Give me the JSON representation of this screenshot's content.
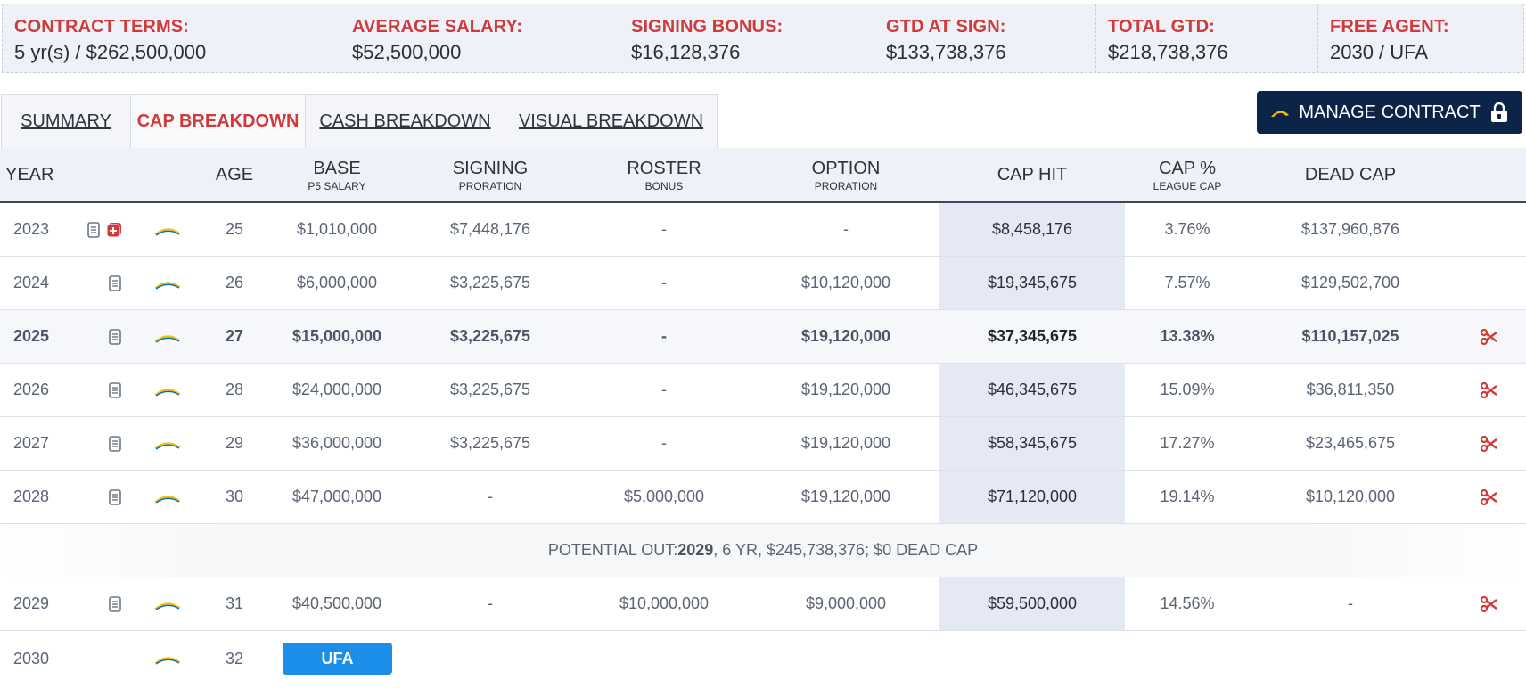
{
  "summary": [
    {
      "label": "CONTRACT TERMS:",
      "value": "5 yr(s) / $262,500,000"
    },
    {
      "label": "AVERAGE SALARY:",
      "value": "$52,500,000"
    },
    {
      "label": "SIGNING BONUS:",
      "value": "$16,128,376"
    },
    {
      "label": "GTD AT SIGN:",
      "value": "$133,738,376"
    },
    {
      "label": "TOTAL GTD:",
      "value": "$218,738,376"
    },
    {
      "label": "FREE AGENT:",
      "value": "2030 / UFA"
    }
  ],
  "tabs": [
    {
      "label": "SUMMARY",
      "active": false
    },
    {
      "label": "CAP BREAKDOWN",
      "active": true
    },
    {
      "label": "CASH BREAKDOWN",
      "active": false
    },
    {
      "label": "VISUAL BREAKDOWN",
      "active": false
    }
  ],
  "manage_button": {
    "label": "MANAGE CONTRACT"
  },
  "table": {
    "headers": {
      "year": "YEAR",
      "age": "AGE",
      "base": {
        "main": "BASE",
        "sub": "P5 SALARY"
      },
      "signing": {
        "main": "SIGNING",
        "sub": "PRORATION"
      },
      "roster": {
        "main": "ROSTER",
        "sub": "BONUS"
      },
      "option": {
        "main": "OPTION",
        "sub": "PRORATION"
      },
      "cap_hit": "CAP HIT",
      "cap_pct": {
        "main": "CAP %",
        "sub": "LEAGUE CAP"
      },
      "dead_cap": "DEAD CAP"
    },
    "rows": [
      {
        "year": "2023",
        "age": "25",
        "base": "$1,010,000",
        "signing": "$7,448,176",
        "roster": "-",
        "option": "-",
        "cap_hit": "$8,458,176",
        "cap_pct": "3.76%",
        "dead_cap": "$137,960,876"
      },
      {
        "year": "2024",
        "age": "26",
        "base": "$6,000,000",
        "signing": "$3,225,675",
        "roster": "-",
        "option": "$10,120,000",
        "cap_hit": "$19,345,675",
        "cap_pct": "7.57%",
        "dead_cap": "$129,502,700"
      },
      {
        "year": "2025",
        "age": "27",
        "base": "$15,000,000",
        "signing": "$3,225,675",
        "roster": "-",
        "option": "$19,120,000",
        "cap_hit": "$37,345,675",
        "cap_pct": "13.38%",
        "dead_cap": "$110,157,025"
      },
      {
        "year": "2026",
        "age": "28",
        "base": "$24,000,000",
        "signing": "$3,225,675",
        "roster": "-",
        "option": "$19,120,000",
        "cap_hit": "$46,345,675",
        "cap_pct": "15.09%",
        "dead_cap": "$36,811,350"
      },
      {
        "year": "2027",
        "age": "29",
        "base": "$36,000,000",
        "signing": "$3,225,675",
        "roster": "-",
        "option": "$19,120,000",
        "cap_hit": "$58,345,675",
        "cap_pct": "17.27%",
        "dead_cap": "$23,465,675"
      },
      {
        "year": "2028",
        "age": "30",
        "base": "$47,000,000",
        "signing": "-",
        "roster": "$5,000,000",
        "option": "$19,120,000",
        "cap_hit": "$71,120,000",
        "cap_pct": "19.14%",
        "dead_cap": "$10,120,000"
      }
    ],
    "potential_out": {
      "prefix": "POTENTIAL OUT: ",
      "year": "2029",
      "suffix": ", 6 YR, $245,738,376; $0 DEAD CAP"
    },
    "row_2029": {
      "year": "2029",
      "age": "31",
      "base": "$40,500,000",
      "signing": "-",
      "roster": "$10,000,000",
      "option": "$9,000,000",
      "cap_hit": "$59,500,000",
      "cap_pct": "14.56%",
      "dead_cap": "-"
    },
    "row_2030": {
      "year": "2030",
      "age": "32",
      "status": "UFA"
    }
  },
  "colors": {
    "accent_red": "#d03a3a",
    "navy": "#0b2447",
    "ufa_blue": "#1a8ee8",
    "bolt_gold": "#f2c200"
  }
}
